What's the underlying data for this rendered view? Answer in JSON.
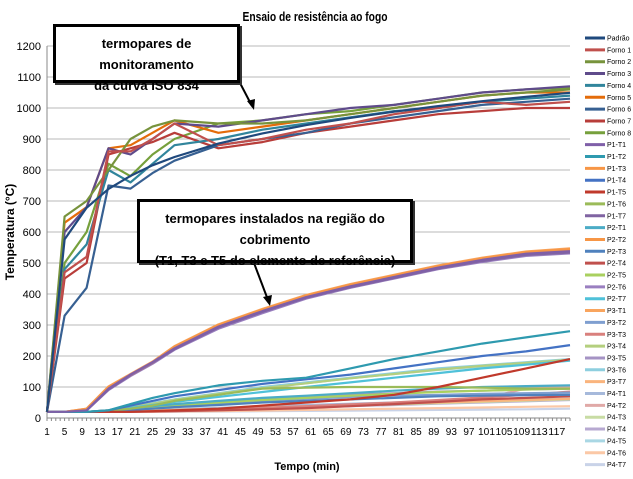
{
  "chart_data": {
    "type": "line",
    "title": "Ensaio de resistência ao fogo",
    "xlabel": "Tempo (min)",
    "ylabel": "Temperatura (°C)",
    "xlim": [
      1,
      120
    ],
    "ylim": [
      0,
      1200
    ],
    "yticks": [
      0,
      100,
      200,
      300,
      400,
      500,
      600,
      700,
      800,
      900,
      1000,
      1100,
      1200
    ],
    "xticks": [
      1,
      5,
      9,
      13,
      17,
      21,
      25,
      29,
      33,
      37,
      41,
      45,
      49,
      53,
      57,
      61,
      65,
      69,
      73,
      77,
      81,
      85,
      89,
      93,
      97,
      101,
      105,
      109,
      113,
      117
    ],
    "grid": "horizontal",
    "legend_position": "right",
    "x": [
      1,
      5,
      10,
      15,
      20,
      25,
      30,
      40,
      50,
      60,
      70,
      80,
      90,
      100,
      110,
      120
    ],
    "series": [
      {
        "name": "Padrão",
        "color": "#1F497D",
        "values": [
          20,
          576,
          678,
          739,
          781,
          815,
          842,
          885,
          918,
          945,
          968,
          988,
          1006,
          1022,
          1036,
          1049
        ]
      },
      {
        "name": "Forno 1",
        "color": "#C0504D",
        "values": [
          20,
          470,
          520,
          860,
          860,
          900,
          950,
          880,
          900,
          930,
          950,
          980,
          1000,
          1020,
          1010,
          1020
        ]
      },
      {
        "name": "Forno 2",
        "color": "#77933C",
        "values": [
          20,
          650,
          700,
          800,
          900,
          940,
          960,
          950,
          950,
          960,
          980,
          1000,
          1020,
          1040,
          1050,
          1060
        ]
      },
      {
        "name": "Forno 3",
        "color": "#5F4B8B",
        "values": [
          20,
          600,
          680,
          870,
          850,
          900,
          950,
          940,
          960,
          980,
          1000,
          1010,
          1030,
          1050,
          1060,
          1070
        ]
      },
      {
        "name": "Forno 4",
        "color": "#31859C",
        "values": [
          20,
          480,
          560,
          800,
          760,
          820,
          880,
          900,
          930,
          950,
          970,
          990,
          1000,
          1020,
          1030,
          1040
        ]
      },
      {
        "name": "Forno 5",
        "color": "#E46C0A",
        "values": [
          20,
          630,
          680,
          870,
          880,
          920,
          960,
          920,
          940,
          960,
          980,
          1000,
          1020,
          1040,
          1050,
          1050
        ]
      },
      {
        "name": "Forno 6",
        "color": "#376092",
        "values": [
          20,
          330,
          420,
          750,
          740,
          790,
          830,
          880,
          900,
          920,
          950,
          970,
          990,
          1010,
          1020,
          1030
        ]
      },
      {
        "name": "Forno 7",
        "color": "#B83D3A",
        "values": [
          20,
          450,
          500,
          850,
          870,
          890,
          920,
          870,
          890,
          920,
          940,
          960,
          980,
          990,
          1000,
          1000
        ]
      },
      {
        "name": "Forno 8",
        "color": "#76A03C",
        "values": [
          20,
          500,
          600,
          820,
          780,
          850,
          900,
          950,
          960,
          980,
          990,
          1010,
          1030,
          1050,
          1060,
          1065
        ]
      },
      {
        "name": "P1-T1",
        "color": "#7F5FA8",
        "values": [
          20,
          20,
          25,
          95,
          140,
          180,
          225,
          295,
          345,
          390,
          425,
          455,
          485,
          510,
          530,
          538
        ]
      },
      {
        "name": "P1-T2",
        "color": "#2E9AAF",
        "values": [
          20,
          20,
          20,
          25,
          45,
          65,
          80,
          105,
          120,
          130,
          160,
          190,
          215,
          240,
          260,
          280
        ]
      },
      {
        "name": "P1-T3",
        "color": "#F79646",
        "values": [
          20,
          20,
          30,
          100,
          140,
          180,
          230,
          300,
          350,
          395,
          430,
          460,
          490,
          515,
          535,
          545
        ]
      },
      {
        "name": "P1-T4",
        "color": "#4472C4",
        "values": [
          20,
          20,
          20,
          25,
          40,
          55,
          70,
          90,
          110,
          125,
          140,
          160,
          180,
          200,
          215,
          235
        ]
      },
      {
        "name": "P1-T5",
        "color": "#C0392B",
        "values": [
          20,
          20,
          20,
          20,
          20,
          22,
          25,
          30,
          40,
          50,
          60,
          75,
          100,
          130,
          160,
          190
        ]
      },
      {
        "name": "P1-T6",
        "color": "#9BBB59",
        "values": [
          20,
          20,
          20,
          25,
          30,
          40,
          55,
          75,
          95,
          98,
          100,
          100,
          100,
          98,
          95,
          95
        ]
      },
      {
        "name": "P1-T7",
        "color": "#8064A2",
        "values": [
          20,
          20,
          25,
          92,
          138,
          178,
          222,
          292,
          342,
          388,
          422,
          452,
          482,
          506,
          526,
          534
        ]
      },
      {
        "name": "P2-T1",
        "color": "#4BACC6",
        "values": [
          20,
          20,
          20,
          22,
          30,
          38,
          45,
          55,
          65,
          72,
          80,
          88,
          95,
          100,
          103,
          105
        ]
      },
      {
        "name": "P2-T2",
        "color": "#F79646",
        "values": [
          20,
          20,
          28,
          98,
          138,
          178,
          228,
          298,
          348,
          392,
          428,
          458,
          488,
          512,
          532,
          542
        ]
      },
      {
        "name": "P2-T3",
        "color": "#4F81BD",
        "values": [
          20,
          20,
          20,
          22,
          26,
          30,
          35,
          42,
          50,
          55,
          60,
          65,
          70,
          72,
          74,
          75
        ]
      },
      {
        "name": "P2-T4",
        "color": "#C0504D",
        "values": [
          20,
          20,
          20,
          20,
          20,
          21,
          22,
          25,
          28,
          32,
          38,
          45,
          52,
          60,
          65,
          70
        ]
      },
      {
        "name": "P2-T5",
        "color": "#A9D05F",
        "values": [
          20,
          20,
          20,
          22,
          28,
          34,
          40,
          50,
          58,
          65,
          72,
          78,
          84,
          88,
          92,
          95
        ]
      },
      {
        "name": "P2-T6",
        "color": "#9A7FC0",
        "values": [
          20,
          20,
          24,
          90,
          135,
          175,
          220,
          288,
          338,
          385,
          420,
          450,
          480,
          503,
          523,
          531
        ]
      },
      {
        "name": "P2-T7",
        "color": "#4FC1D9",
        "values": [
          20,
          20,
          20,
          24,
          33,
          42,
          52,
          68,
          84,
          100,
          115,
          130,
          145,
          160,
          172,
          185
        ]
      },
      {
        "name": "P3-T1",
        "color": "#F9A55E",
        "values": [
          20,
          20,
          30,
          102,
          142,
          182,
          232,
          302,
          352,
          397,
          432,
          462,
          492,
          517,
          537,
          547
        ]
      },
      {
        "name": "P3-T2",
        "color": "#7F9FD0",
        "values": [
          20,
          20,
          20,
          22,
          26,
          32,
          38,
          48,
          56,
          62,
          68,
          72,
          75,
          78,
          80,
          82
        ]
      },
      {
        "name": "P3-T3",
        "color": "#D9807D",
        "values": [
          20,
          20,
          20,
          20,
          21,
          22,
          24,
          28,
          33,
          38,
          44,
          50,
          58,
          66,
          75,
          85
        ]
      },
      {
        "name": "P3-T4",
        "color": "#B4CF7E",
        "values": [
          20,
          20,
          20,
          24,
          34,
          46,
          58,
          78,
          96,
          112,
          128,
          142,
          156,
          168,
          178,
          188
        ]
      },
      {
        "name": "P3-T5",
        "color": "#A593C4",
        "values": [
          20,
          20,
          20,
          22,
          27,
          33,
          40,
          50,
          60,
          68,
          75,
          80,
          85,
          88,
          92,
          95
        ]
      },
      {
        "name": "P3-T6",
        "color": "#8ECFDF",
        "values": [
          20,
          20,
          20,
          25,
          36,
          48,
          60,
          80,
          100,
          115,
          130,
          145,
          160,
          170,
          180,
          190
        ]
      },
      {
        "name": "P3-T7",
        "color": "#FAB47D",
        "values": [
          20,
          20,
          20,
          21,
          22,
          24,
          26,
          30,
          34,
          38,
          42,
          46,
          50,
          54,
          58,
          62
        ]
      },
      {
        "name": "P4-T1",
        "color": "#A6B9DB",
        "values": [
          20,
          20,
          20,
          21,
          23,
          25,
          28,
          33,
          38,
          42,
          46,
          50,
          54,
          58,
          60,
          62
        ]
      },
      {
        "name": "P4-T2",
        "color": "#E0A9A7",
        "values": [
          20,
          20,
          20,
          20,
          20,
          21,
          22,
          25,
          30,
          36,
          42,
          48,
          55,
          62,
          95,
          100
        ]
      },
      {
        "name": "P4-T3",
        "color": "#C8DCA4",
        "values": [
          20,
          20,
          20,
          20,
          21,
          22,
          24,
          28,
          32,
          36,
          40,
          44,
          48,
          52,
          56,
          60
        ]
      },
      {
        "name": "P4-T4",
        "color": "#B7A9D1",
        "values": [
          20,
          20,
          20,
          20,
          21,
          22,
          23,
          26,
          30,
          34,
          38,
          42,
          46,
          50,
          54,
          58
        ]
      },
      {
        "name": "P4-T5",
        "color": "#A9D7E4",
        "values": [
          20,
          20,
          20,
          24,
          35,
          47,
          58,
          78,
          98,
          112,
          128,
          142,
          155,
          166,
          176,
          186
        ]
      },
      {
        "name": "P4-T6",
        "color": "#FBC8A6",
        "values": [
          20,
          20,
          20,
          20,
          20,
          20,
          21,
          22,
          24,
          26,
          28,
          30,
          32,
          34,
          36,
          38
        ]
      },
      {
        "name": "P4-T7",
        "color": "#C9D3E8",
        "values": [
          20,
          20,
          20,
          20,
          20,
          20,
          20,
          21,
          22,
          23,
          24,
          25,
          26,
          27,
          28,
          30
        ]
      }
    ],
    "annotations": [
      {
        "line1": "termopares de monitoramento",
        "line2": "da curva ISO 834"
      },
      {
        "line1": "termopares instalados na região do cobrimento",
        "line2": "(T1, T3 e T5 do elemento de referência)"
      }
    ]
  }
}
